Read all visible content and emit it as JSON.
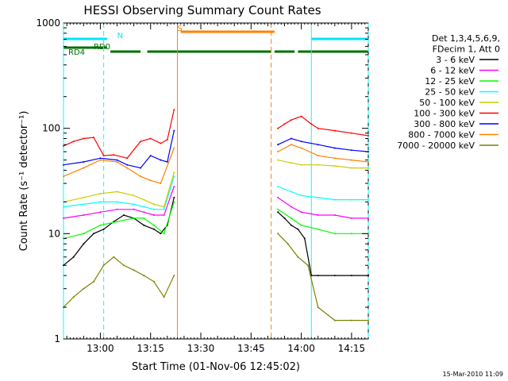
{
  "chart_data": {
    "type": "line",
    "title": "HESSI Observing Summary Count Rates",
    "xlabel": "Start Time (01-Nov-06 12:45:02)",
    "ylabel": "Count Rate (s⁻¹ detector⁻¹)",
    "yscale": "log",
    "ylim": [
      1,
      1000
    ],
    "xlim": [
      "12:49",
      "14:20"
    ],
    "x_ticks": [
      "13:00",
      "13:15",
      "13:30",
      "13:45",
      "14:00",
      "14:15"
    ],
    "y_ticks": [
      "1",
      "10",
      "100",
      "1000"
    ],
    "timestamp": "15-Mar-2010 11:09",
    "legend": {
      "placement": "right",
      "header": [
        "Det 1,3,4,5,6,9,",
        "FDecim 1, Att 0"
      ],
      "entries": [
        {
          "label": "3 - 6 keV",
          "color": "#000000"
        },
        {
          "label": "6 - 12 keV",
          "color": "#ff00ff"
        },
        {
          "label": "12 - 25 keV",
          "color": "#00ff00"
        },
        {
          "label": "25 - 50 keV",
          "color": "#00ffff"
        },
        {
          "label": "50 - 100 keV",
          "color": "#cccc00"
        },
        {
          "label": "100 - 300 keV",
          "color": "#ff0000"
        },
        {
          "label": "300 - 800 keV",
          "color": "#0000ff"
        },
        {
          "label": "800 - 7000 keV",
          "color": "#ff8000"
        },
        {
          "label": "7000 - 20000 keV",
          "color": "#808000"
        }
      ]
    },
    "flag_bars": [
      {
        "label": "N",
        "color": "#00e5ff",
        "segments": [
          [
            "12:49",
            "13:02"
          ],
          [
            "14:03",
            "14:20"
          ]
        ]
      },
      {
        "label": "S",
        "color": "#ff8000",
        "segments": [
          [
            "13:24",
            "13:52"
          ]
        ]
      },
      {
        "label": "RD0",
        "color": "#007000",
        "segments": [
          [
            "12:49",
            "13:02"
          ]
        ]
      },
      {
        "label": "RD4",
        "color": "#007000",
        "segments": [
          [
            "13:03",
            "13:12"
          ],
          [
            "13:14",
            "13:51"
          ],
          [
            "13:52",
            "13:58"
          ],
          [
            "13:59",
            "14:20"
          ]
        ]
      }
    ],
    "vertical_markers": [
      {
        "time": "12:49",
        "color": "#00ffff",
        "style": "solid"
      },
      {
        "time": "13:01",
        "color": "#00ffff",
        "style": "dashed"
      },
      {
        "time": "13:23",
        "color": "#ff8000",
        "style": "solid"
      },
      {
        "time": "13:51",
        "color": "#ff8000",
        "style": "dashed"
      },
      {
        "time": "14:03",
        "color": "#00ffff",
        "style": "solid"
      },
      {
        "time": "14:20",
        "color": "#00ffff",
        "style": "dashed"
      }
    ],
    "series": [
      {
        "name": "3 - 6 keV",
        "color": "#000000",
        "segments": [
          {
            "x": [
              "12:49",
              "12:52",
              "12:55",
              "12:58",
              "13:01",
              "13:04",
              "13:07",
              "13:10",
              "13:13",
              "13:16",
              "13:18",
              "13:20",
              "13:22"
            ],
            "y": [
              5,
              6,
              8,
              10,
              11,
              13,
              15,
              14,
              12,
              11,
              10,
              12,
              22
            ]
          },
          {
            "x": [
              "13:53",
              "13:55",
              "13:57",
              "13:59",
              "14:01",
              "14:03",
              "14:05",
              "14:10",
              "14:15",
              "14:20"
            ],
            "y": [
              16,
              14,
              12,
              11,
              9,
              4,
              4,
              4,
              4,
              4
            ]
          }
        ]
      },
      {
        "name": "6 - 12 keV",
        "color": "#ff00ff",
        "segments": [
          {
            "x": [
              "12:49",
              "12:55",
              "13:00",
              "13:05",
              "13:10",
              "13:13",
              "13:16",
              "13:19",
              "13:22"
            ],
            "y": [
              14,
              15,
              16,
              17,
              17,
              16,
              15,
              15,
              28
            ]
          },
          {
            "x": [
              "13:53",
              "13:57",
              "14:00",
              "14:05",
              "14:10",
              "14:15",
              "14:20"
            ],
            "y": [
              22,
              18,
              16,
              15,
              15,
              14,
              14
            ]
          }
        ]
      },
      {
        "name": "12 - 25 keV",
        "color": "#00ff00",
        "segments": [
          {
            "x": [
              "12:49",
              "12:55",
              "13:00",
              "13:05",
              "13:10",
              "13:13",
              "13:16",
              "13:19",
              "13:22"
            ],
            "y": [
              9,
              10,
              12,
              13,
              14,
              14,
              12,
              10,
              20
            ]
          },
          {
            "x": [
              "13:53",
              "13:57",
              "14:00",
              "14:05",
              "14:10",
              "14:15",
              "14:20"
            ],
            "y": [
              17,
              14,
              12,
              11,
              10,
              10,
              10
            ]
          }
        ]
      },
      {
        "name": "25 - 50 keV",
        "color": "#00ffff",
        "segments": [
          {
            "x": [
              "12:49",
              "12:55",
              "13:00",
              "13:05",
              "13:10",
              "13:13",
              "13:16",
              "13:19",
              "13:22"
            ],
            "y": [
              18,
              19,
              20,
              20,
              19,
              18,
              17,
              17,
              35
            ]
          },
          {
            "x": [
              "13:53",
              "13:57",
              "14:00",
              "14:05",
              "14:10",
              "14:15",
              "14:20"
            ],
            "y": [
              28,
              25,
              23,
              22,
              21,
              21,
              21
            ]
          }
        ]
      },
      {
        "name": "50 - 100 keV",
        "color": "#cccc00",
        "segments": [
          {
            "x": [
              "12:49",
              "12:55",
              "13:00",
              "13:05",
              "13:10",
              "13:13",
              "13:16",
              "13:19",
              "13:22"
            ],
            "y": [
              20,
              22,
              24,
              25,
              23,
              21,
              19,
              18,
              38
            ]
          },
          {
            "x": [
              "13:53",
              "13:57",
              "14:00",
              "14:05",
              "14:10",
              "14:15",
              "14:20"
            ],
            "y": [
              50,
              47,
              45,
              45,
              44,
              42,
              42
            ]
          }
        ]
      },
      {
        "name": "100 - 300 keV",
        "color": "#ff0000",
        "segments": [
          {
            "x": [
              "12:49",
              "12:52",
              "12:55",
              "12:58",
              "13:01",
              "13:04",
              "13:08",
              "13:12",
              "13:15",
              "13:18",
              "13:20",
              "13:22"
            ],
            "y": [
              68,
              75,
              80,
              82,
              55,
              56,
              52,
              75,
              80,
              72,
              78,
              150
            ]
          },
          {
            "x": [
              "13:53",
              "13:55",
              "13:57",
              "14:00",
              "14:03",
              "14:05",
              "14:10",
              "14:15",
              "14:20"
            ],
            "y": [
              100,
              110,
              120,
              130,
              110,
              100,
              95,
              90,
              85
            ]
          }
        ]
      },
      {
        "name": "300 - 800 keV",
        "color": "#0000ff",
        "segments": [
          {
            "x": [
              "12:49",
              "12:55",
              "13:00",
              "13:05",
              "13:08",
              "13:12",
              "13:15",
              "13:18",
              "13:20",
              "13:22"
            ],
            "y": [
              45,
              48,
              52,
              50,
              45,
              42,
              55,
              50,
              48,
              95
            ]
          },
          {
            "x": [
              "13:53",
              "13:57",
              "14:00",
              "14:05",
              "14:10",
              "14:15",
              "14:20"
            ],
            "y": [
              70,
              80,
              75,
              70,
              65,
              62,
              60
            ]
          }
        ]
      },
      {
        "name": "800 - 7000 keV",
        "color": "#ff8000",
        "segments": [
          {
            "x": [
              "12:49",
              "12:55",
              "13:00",
              "13:05",
              "13:08",
              "13:12",
              "13:15",
              "13:18",
              "13:22"
            ],
            "y": [
              35,
              42,
              50,
              48,
              42,
              35,
              32,
              30,
              65
            ]
          },
          {
            "x": [
              "13:53",
              "13:57",
              "14:00",
              "14:05",
              "14:10",
              "14:15",
              "14:20"
            ],
            "y": [
              60,
              70,
              65,
              55,
              52,
              50,
              48
            ]
          }
        ]
      },
      {
        "name": "7000 - 20000 keV",
        "color": "#808000",
        "segments": [
          {
            "x": [
              "12:49",
              "12:52",
              "12:55",
              "12:58",
              "13:01",
              "13:04",
              "13:07",
              "13:10",
              "13:13",
              "13:16",
              "13:19",
              "13:22"
            ],
            "y": [
              2,
              2.5,
              3,
              3.5,
              5,
              6,
              5,
              4.5,
              4,
              3.5,
              2.5,
              4
            ]
          },
          {
            "x": [
              "13:53",
              "13:56",
              "13:59",
              "14:02",
              "14:05",
              "14:10",
              "14:15",
              "14:20"
            ],
            "y": [
              10,
              8,
              6,
              5,
              2,
              1.5,
              1.5,
              1.5
            ]
          }
        ]
      }
    ]
  }
}
